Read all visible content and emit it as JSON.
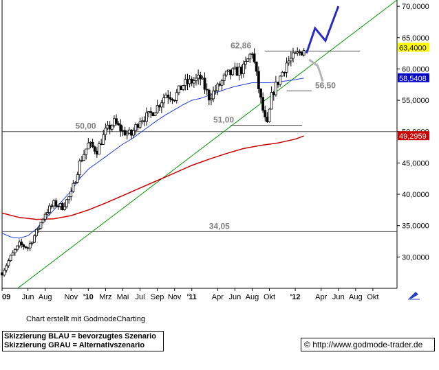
{
  "chart_data": {
    "type": "candlestick",
    "y_axis": {
      "ticks": [
        "70,0000",
        "65,0000",
        "60,0000",
        "55,0000",
        "50,0000",
        "45,0000",
        "40,0000",
        "35,0000",
        "30,0000"
      ],
      "tick_values": [
        70,
        65,
        60,
        55,
        50,
        45,
        40,
        35,
        30
      ],
      "range": [
        25.0,
        71.0
      ]
    },
    "x_axis": {
      "ticks": [
        "09",
        "Jun",
        "Aug",
        "Nov",
        "'10",
        "Mrz",
        "Mai",
        "Jul",
        "Sep",
        "Nov",
        "'11",
        "Apr",
        "Jun",
        "Aug",
        "Okt",
        "'12",
        "Apr",
        "Jun",
        "Aug",
        "Okt"
      ],
      "year_ticks": [
        "09",
        "'10",
        "'11",
        "'12"
      ],
      "tick_months": [
        3,
        6,
        8,
        11,
        13,
        15,
        17,
        19,
        21,
        23,
        25,
        28,
        30,
        32,
        34,
        37,
        40,
        42,
        44,
        46
      ],
      "range_months": [
        3.0,
        48.8
      ]
    },
    "price_path": [
      [
        3.0,
        27.5
      ],
      [
        4.0,
        30.0
      ],
      [
        5.0,
        32.0
      ],
      [
        6.0,
        31.5
      ],
      [
        7.0,
        34.0
      ],
      [
        8.0,
        37.0
      ],
      [
        9.0,
        38.5
      ],
      [
        10.0,
        38.0
      ],
      [
        11.0,
        40.0
      ],
      [
        12.0,
        45.0
      ],
      [
        13.0,
        48.0
      ],
      [
        14.0,
        47.0
      ],
      [
        15.0,
        50.0
      ],
      [
        16.0,
        51.5
      ],
      [
        17.0,
        50.0
      ],
      [
        18.0,
        49.5
      ],
      [
        19.0,
        52.0
      ],
      [
        20.0,
        52.5
      ],
      [
        21.0,
        54.0
      ],
      [
        22.0,
        56.0
      ],
      [
        23.0,
        55.5
      ],
      [
        24.0,
        57.5
      ],
      [
        25.0,
        58.0
      ],
      [
        26.0,
        58.5
      ],
      [
        27.0,
        55.5
      ],
      [
        28.0,
        57.0
      ],
      [
        29.0,
        59.0
      ],
      [
        30.0,
        59.5
      ],
      [
        31.0,
        60.0
      ],
      [
        32.0,
        62.86
      ],
      [
        33.0,
        55.0
      ],
      [
        33.7,
        50.5
      ],
      [
        34.3,
        56.0
      ],
      [
        35.0,
        58.0
      ],
      [
        36.0,
        61.0
      ],
      [
        37.0,
        62.0
      ],
      [
        38.0,
        63.2
      ]
    ],
    "ma_blue": [
      [
        3.0,
        33.8
      ],
      [
        4.0,
        33.2
      ],
      [
        5.0,
        33.0
      ],
      [
        6.0,
        33.4
      ],
      [
        7.0,
        34.5
      ],
      [
        8.0,
        36.0
      ],
      [
        9.0,
        37.5
      ],
      [
        10.0,
        39.0
      ],
      [
        11.0,
        40.5
      ],
      [
        12.0,
        42.5
      ],
      [
        13.0,
        44.0
      ],
      [
        14.0,
        45.0
      ],
      [
        15.0,
        46.0
      ],
      [
        16.0,
        47.0
      ],
      [
        17.0,
        48.0
      ],
      [
        18.0,
        48.8
      ],
      [
        19.0,
        49.8
      ],
      [
        20.0,
        50.8
      ],
      [
        21.0,
        51.8
      ],
      [
        22.0,
        52.7
      ],
      [
        23.0,
        53.5
      ],
      [
        24.0,
        54.3
      ],
      [
        25.0,
        55.0
      ],
      [
        26.0,
        55.3
      ],
      [
        27.0,
        55.8
      ],
      [
        28.0,
        56.3
      ],
      [
        29.0,
        56.8
      ],
      [
        30.0,
        57.2
      ],
      [
        31.0,
        57.5
      ],
      [
        32.0,
        57.8
      ],
      [
        33.0,
        57.8
      ],
      [
        34.0,
        57.8
      ],
      [
        35.0,
        57.9
      ],
      [
        36.0,
        58.1
      ],
      [
        37.0,
        58.3
      ],
      [
        38.0,
        58.54
      ]
    ],
    "ma_red": [
      [
        3.0,
        37.0
      ],
      [
        5.0,
        36.3
      ],
      [
        7.0,
        36.0
      ],
      [
        9.0,
        36.1
      ],
      [
        11.0,
        36.6
      ],
      [
        13.0,
        37.5
      ],
      [
        15.0,
        38.6
      ],
      [
        17.0,
        39.8
      ],
      [
        19.0,
        41.0
      ],
      [
        21.0,
        42.2
      ],
      [
        23.0,
        43.4
      ],
      [
        25.0,
        44.6
      ],
      [
        27.0,
        45.6
      ],
      [
        29.0,
        46.5
      ],
      [
        31.0,
        47.3
      ],
      [
        33.0,
        47.8
      ],
      [
        35.0,
        48.2
      ],
      [
        37.0,
        48.8
      ],
      [
        38.0,
        49.3
      ]
    ],
    "trendline_green": [
      [
        4.8,
        25.0
      ],
      [
        48.8,
        71.0
      ]
    ],
    "levels": [
      {
        "label": "62,86",
        "value": 62.86
      },
      {
        "label": "56,50",
        "value": 56.5
      },
      {
        "label": "51,00",
        "value": 51.0
      },
      {
        "label": "50,00",
        "value": 50.0
      },
      {
        "label": "34,05",
        "value": 34.05
      }
    ],
    "last_values": [
      {
        "label": "63,4000",
        "value": 63.4,
        "bg": "#ffff00",
        "fg": "#000000"
      },
      {
        "label": "58,5408",
        "value": 58.5408,
        "bg": "#0000c8",
        "fg": "#ffffff"
      },
      {
        "label": "49,2959",
        "value": 49.2959,
        "bg": "#c80000",
        "fg": "#ffffff"
      }
    ],
    "scenario_blue": [
      [
        38.3,
        62.5
      ],
      [
        39.3,
        66.5
      ],
      [
        40.5,
        64.5
      ],
      [
        42.0,
        70.0
      ]
    ],
    "scenario_gray": [
      [
        38.6,
        61.5
      ],
      [
        39.6,
        60.5
      ],
      [
        39.9,
        59.3
      ],
      [
        40.2,
        58.0
      ]
    ],
    "colors": {
      "candle": "#000000",
      "ma_blue": "#1e3cdc",
      "ma_red": "#c80000",
      "trend": "#009600",
      "levels": "#505050",
      "scenario_blue": "#2828c8",
      "scenario_gray": "#b4b4b4"
    }
  },
  "footer": {
    "credit": "Chart erstellt mit GodmodeCharting",
    "legend_blue": "Skizzierung BLAU = bevorzugtes Szenario",
    "legend_gray": "Skizzierung GRAU = Alternativszenario",
    "copyright_symbol": "©",
    "source_url": "http://www.godmode-trader.de"
  }
}
